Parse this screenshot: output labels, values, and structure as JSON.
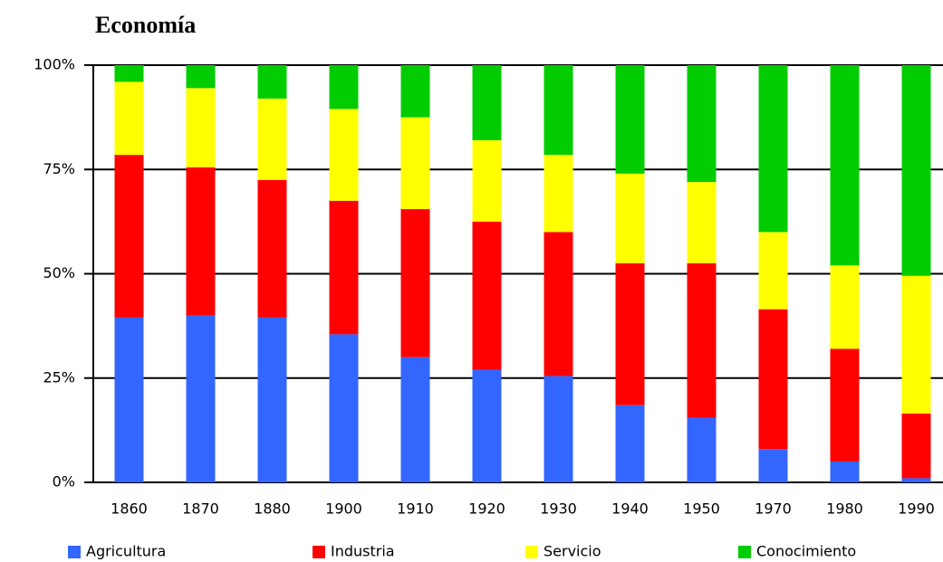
{
  "chart_data": {
    "type": "stacked_bar",
    "title": "Economía",
    "categories": [
      "1860",
      "1870",
      "1880",
      "1900",
      "1910",
      "1920",
      "1930",
      "1940",
      "1950",
      "1970",
      "1980",
      "1990"
    ],
    "series": [
      {
        "name": "Agricultura",
        "color": "#3366ff",
        "values": [
          39.5,
          40,
          39.5,
          35.5,
          30,
          27,
          25.5,
          18.5,
          15.5,
          8,
          5,
          1
        ]
      },
      {
        "name": "Industria",
        "color": "#ff0000",
        "values": [
          39,
          35.5,
          33,
          32,
          35.5,
          35.5,
          34.5,
          34,
          37,
          33.5,
          27,
          15.5
        ]
      },
      {
        "name": "Servicio",
        "color": "#ffff00",
        "values": [
          17.5,
          19,
          19.5,
          22,
          22,
          19.5,
          18.5,
          21.5,
          19.5,
          18.5,
          20,
          33
        ]
      },
      {
        "name": "Conocimiento",
        "color": "#00cc00",
        "values": [
          4,
          5.5,
          8,
          10.5,
          12.5,
          18,
          21.5,
          26,
          28,
          40,
          48,
          50.5
        ]
      }
    ],
    "ylim": [
      0,
      100
    ],
    "yticks": [
      {
        "value": 0,
        "label": "0%"
      },
      {
        "value": 25,
        "label": "25%"
      },
      {
        "value": 50,
        "label": "50%"
      },
      {
        "value": 75,
        "label": "75%"
      },
      {
        "value": 100,
        "label": "100%"
      }
    ],
    "grid": true
  }
}
